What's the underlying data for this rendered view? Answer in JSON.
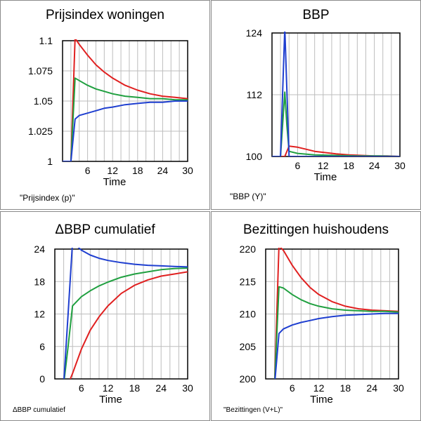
{
  "chart_data": [
    {
      "type": "line",
      "title": "Prijsindex woningen",
      "xlabel": "Time",
      "ylabel": "",
      "xlim": [
        0,
        30
      ],
      "ylim": [
        1,
        1.1
      ],
      "xticks": [
        "6",
        "12",
        "18",
        "24",
        "30"
      ],
      "yticks": [
        "1",
        "1.025",
        "1.05",
        "1.075",
        "1.1"
      ],
      "grid": true,
      "note": "\"Prijsindex (p)\"",
      "series": [
        {
          "color": "#e02020",
          "x": [
            0,
            2,
            3,
            4,
            6,
            8,
            10,
            12,
            15,
            18,
            21,
            24,
            27,
            30
          ],
          "y": [
            1,
            1,
            1.102,
            1.097,
            1.088,
            1.08,
            1.074,
            1.069,
            1.063,
            1.059,
            1.056,
            1.054,
            1.053,
            1.052
          ]
        },
        {
          "color": "#20a040",
          "x": [
            0,
            2,
            3,
            4,
            6,
            8,
            10,
            12,
            15,
            18,
            21,
            24,
            27,
            30
          ],
          "y": [
            1,
            1,
            1.069,
            1.067,
            1.063,
            1.06,
            1.058,
            1.056,
            1.054,
            1.053,
            1.052,
            1.052,
            1.051,
            1.051
          ]
        },
        {
          "color": "#1f3fd0",
          "x": [
            0,
            2,
            3,
            4,
            6,
            8,
            10,
            12,
            15,
            18,
            21,
            24,
            27,
            30
          ],
          "y": [
            1,
            1,
            1.035,
            1.038,
            1.04,
            1.042,
            1.044,
            1.045,
            1.047,
            1.048,
            1.049,
            1.049,
            1.05,
            1.05
          ]
        }
      ]
    },
    {
      "type": "line",
      "title": "BBP",
      "xlabel": "Time",
      "ylabel": "",
      "xlim": [
        0,
        30
      ],
      "ylim": [
        100,
        124
      ],
      "xticks": [
        "6",
        "12",
        "18",
        "24",
        "30"
      ],
      "yticks": [
        "100",
        "112",
        "124"
      ],
      "grid": true,
      "note": "\"BBP (Y)\"",
      "series": [
        {
          "color": "#e02020",
          "x": [
            0,
            2,
            3,
            3.5,
            4,
            6,
            8,
            10,
            12,
            15,
            18,
            21,
            24,
            27,
            30
          ],
          "y": [
            100,
            100,
            100,
            101,
            102,
            101.8,
            101.4,
            101,
            100.8,
            100.5,
            100.3,
            100.2,
            100.1,
            100.1,
            100
          ]
        },
        {
          "color": "#20a040",
          "x": [
            0,
            2,
            3,
            3.5,
            4,
            6,
            10,
            15,
            20,
            25,
            30
          ],
          "y": [
            100,
            100,
            112.5,
            106,
            101,
            100.6,
            100.3,
            100.2,
            100.1,
            100.1,
            100
          ]
        },
        {
          "color": "#1f3fd0",
          "x": [
            0,
            2,
            3,
            4,
            6,
            10,
            30
          ],
          "y": [
            100,
            100,
            125,
            100,
            100,
            100,
            100
          ]
        }
      ]
    },
    {
      "type": "line",
      "title": "ΔBBP cumulatief",
      "xlabel": "Time",
      "ylabel": "",
      "xlim": [
        0,
        30
      ],
      "ylim": [
        0,
        24
      ],
      "xticks": [
        "6",
        "12",
        "18",
        "24",
        "30"
      ],
      "yticks": [
        "0",
        "6",
        "12",
        "18",
        "24"
      ],
      "grid": true,
      "note": "ΔBBP cumulatief",
      "series": [
        {
          "color": "#e02020",
          "x": [
            0,
            2,
            3,
            4,
            6,
            8,
            10,
            12,
            15,
            18,
            21,
            24,
            27,
            30
          ],
          "y": [
            -1,
            -1,
            -1,
            1,
            5.5,
            9,
            11.5,
            13.5,
            15.8,
            17.3,
            18.3,
            19,
            19.4,
            19.8
          ]
        },
        {
          "color": "#20a040",
          "x": [
            0,
            2,
            3,
            4,
            6,
            8,
            10,
            12,
            15,
            18,
            21,
            24,
            27,
            30
          ],
          "y": [
            -1,
            -1,
            6,
            13.5,
            15.2,
            16.3,
            17.2,
            17.9,
            18.8,
            19.4,
            19.8,
            20.2,
            20.4,
            20.5
          ]
        },
        {
          "color": "#1f3fd0",
          "x": [
            0,
            2,
            3,
            4,
            6,
            8,
            10,
            12,
            15,
            18,
            21,
            24,
            27,
            30
          ],
          "y": [
            -1,
            -1,
            12,
            25.3,
            23.8,
            22.9,
            22.3,
            21.9,
            21.5,
            21.2,
            21,
            20.9,
            20.8,
            20.7
          ]
        }
      ]
    },
    {
      "type": "line",
      "title": "Bezittingen huishoudens",
      "xlabel": "Time",
      "ylabel": "",
      "xlim": [
        0,
        30
      ],
      "ylim": [
        200,
        220
      ],
      "xticks": [
        "6",
        "12",
        "18",
        "24",
        "30"
      ],
      "yticks": [
        "200",
        "205",
        "210",
        "215",
        "220"
      ],
      "grid": true,
      "note": "\"Bezittingen (V+L)\"",
      "series": [
        {
          "color": "#e02020",
          "x": [
            0,
            2,
            3,
            4,
            6,
            8,
            10,
            12,
            15,
            18,
            21,
            24,
            27,
            30
          ],
          "y": [
            199,
            199,
            220.5,
            219.8,
            217.5,
            215.6,
            214.1,
            213,
            211.9,
            211.2,
            210.8,
            210.6,
            210.5,
            210.4
          ]
        },
        {
          "color": "#20a040",
          "x": [
            0,
            2,
            3,
            4,
            6,
            8,
            10,
            12,
            15,
            18,
            21,
            24,
            27,
            30
          ],
          "y": [
            199,
            199,
            214.2,
            214,
            213,
            212.2,
            211.6,
            211.2,
            210.8,
            210.6,
            210.5,
            210.4,
            210.4,
            210.3
          ]
        },
        {
          "color": "#1f3fd0",
          "x": [
            0,
            2,
            3,
            4,
            6,
            8,
            10,
            12,
            15,
            18,
            21,
            24,
            27,
            30
          ],
          "y": [
            199,
            199,
            207,
            207.7,
            208.3,
            208.7,
            209,
            209.3,
            209.6,
            209.8,
            209.9,
            210,
            210.1,
            210.1
          ]
        }
      ]
    }
  ]
}
